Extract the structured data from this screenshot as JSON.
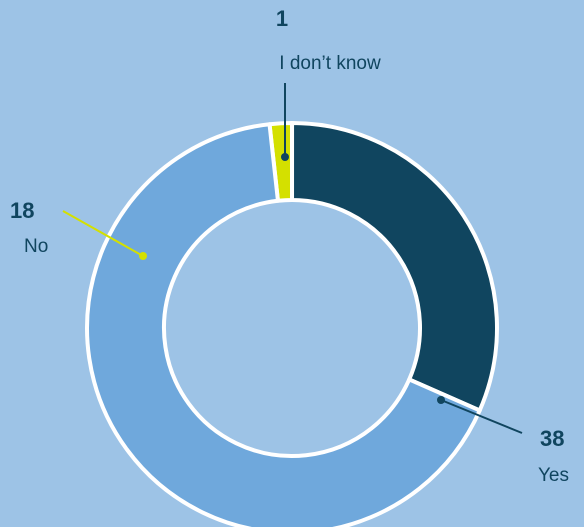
{
  "chart_data": {
    "type": "pie",
    "style": "donut",
    "categories": [
      "I don’t know",
      "No",
      "Yes"
    ],
    "values": [
      1,
      18,
      38
    ],
    "colors": {
      "I don’t know": "#d4e000",
      "No": "#10455f",
      "Yes": "#6fa8dc"
    },
    "label_color": "#10455f",
    "background": "#9dc3e6",
    "slice_border": "#ffffff"
  }
}
